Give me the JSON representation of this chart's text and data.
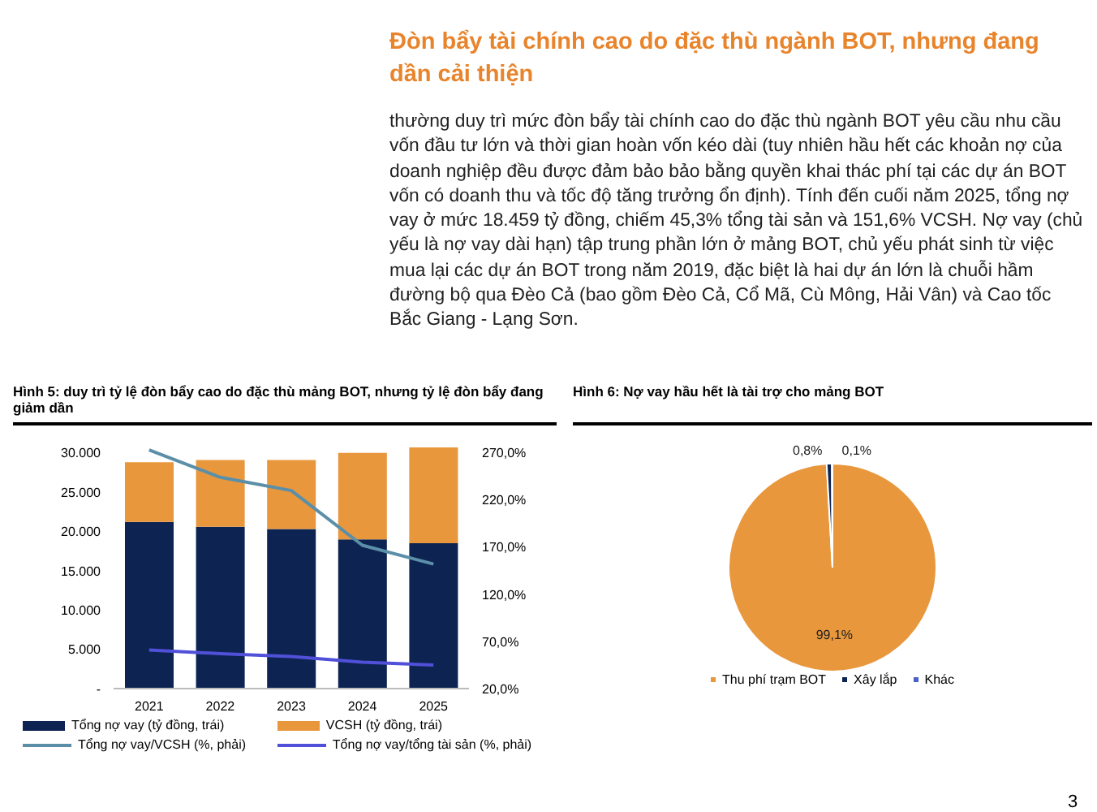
{
  "chart_data": [
    {
      "type": "other",
      "title": "Đòn bẩy tài chính cao do đặc thù ngành BOT, nhưng đang dần cải thiện",
      "annotations": [
        "thường duy trì mức đòn bẩy tài chính cao do đặc thù ngành BOT yêu cầu nhu cầu vốn đầu tư lớn và thời gian hoàn vốn kéo dài (tuy nhiên hầu hết các khoản nợ của doanh nghiệp đều được đảm bảo bảo bằng quyền khai thác phí tại các dự án BOT vốn có doanh thu và tốc độ tăng trưởng ổn định). Tính đến cuối năm 2025, tổng nợ vay ở mức 18.459 tỷ đồng, chiếm 45,3% tổng tài sản và 151,6% VCSH. Nợ vay (chủ yếu là nợ vay dài hạn) tập trung phần lớn ở mảng BOT, chủ yếu phát sinh từ việc mua lại các dự án BOT trong năm 2019, đặc biệt là hai dự án lớn là chuỗi hầm đường bộ qua Đèo Cả (bao gồm Đèo Cả, Cổ Mã, Cù Mông, Hải Vân) và Cao tốc Bắc Giang - Lạng Sơn.",
        "3"
      ]
    },
    {
      "type": "bar",
      "stacked": true,
      "title": "Hình 5: duy trì tỷ lệ đòn bẩy cao do đặc thù mảng BOT, nhưng tỷ lệ đòn bẩy đang giảm dần",
      "categories": [
        "2021",
        "2022",
        "2023",
        "2024",
        "2025"
      ],
      "series": [
        {
          "name": "Tổng nợ vay (tỷ đồng, trái)",
          "color": "#0d2352",
          "values": [
            21200,
            20600,
            20300,
            19000,
            18500
          ]
        },
        {
          "name": "VCSH (tỷ đồng, trái)",
          "color": "#e8973d",
          "values": [
            7600,
            8500,
            8800,
            11000,
            12200
          ]
        },
        {
          "name": "Tổng nợ vay/VCSH (%, phải)",
          "type": "line",
          "axis": "y2",
          "color": "#5b8fa8",
          "values": [
            273,
            244,
            230,
            172,
            152
          ]
        },
        {
          "name": "Tổng nợ vay/tổng tài sản (%, phải)",
          "type": "line",
          "axis": "y2",
          "color": "#5050d8",
          "values": [
            61,
            57,
            54,
            48,
            45
          ]
        }
      ],
      "ylim": [
        0,
        31000
      ],
      "yticks": [
        {
          "value": 0,
          "label": "-"
        },
        {
          "value": 5000,
          "label": "5.000"
        },
        {
          "value": 10000,
          "label": "10.000"
        },
        {
          "value": 15000,
          "label": "15.000"
        },
        {
          "value": 20000,
          "label": "20.000"
        },
        {
          "value": 25000,
          "label": "25.000"
        },
        {
          "value": 30000,
          "label": "30.000"
        }
      ],
      "y2lim": [
        20,
        278.3
      ],
      "y2ticks": [
        {
          "value": 20,
          "label": "20,0%"
        },
        {
          "value": 70,
          "label": "70,0%"
        },
        {
          "value": 120,
          "label": "120,0%"
        },
        {
          "value": 170,
          "label": "170,0%"
        },
        {
          "value": 220,
          "label": "220,0%"
        },
        {
          "value": 270,
          "label": "270,0%"
        }
      ],
      "legend": "bottom",
      "marker": "none"
    },
    {
      "type": "pie",
      "title": "Hình 6: Nợ vay hầu hết là tài trợ cho mảng BOT",
      "categories": [
        "Thu phí trạm BOT",
        "Xây lắp",
        "Khác"
      ],
      "values": [
        99.1,
        0.8,
        0.1
      ],
      "colors": [
        "#e8973d",
        "#0d2352",
        "#4a5fc8"
      ],
      "value_labels": [
        "99,1%",
        "0,8%",
        "0,1%"
      ],
      "legend": "bottom"
    }
  ]
}
